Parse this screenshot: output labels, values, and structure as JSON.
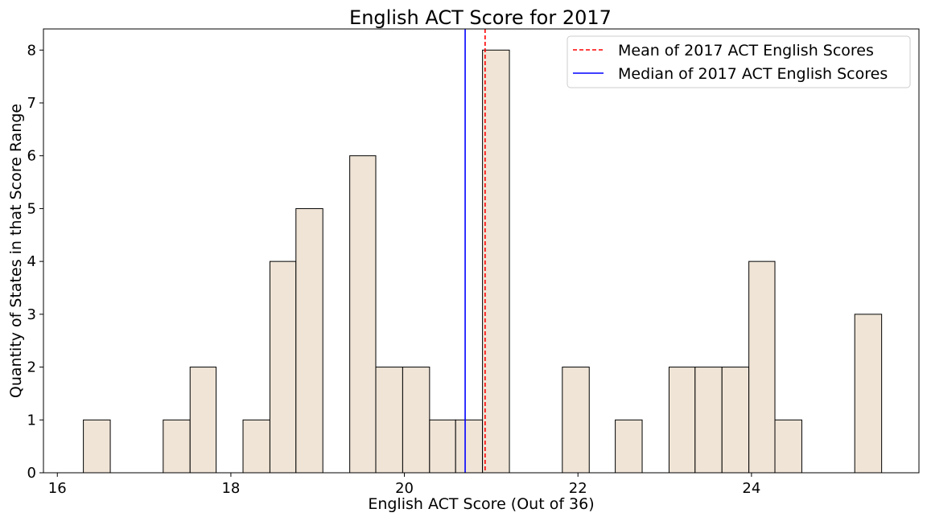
{
  "chart_data": {
    "type": "bar",
    "title": "English ACT Score for 2017",
    "xlabel": "English ACT Score (Out of 36)",
    "ylabel": "Quantity of States in that Score Range",
    "xlim": [
      15.84,
      25.93
    ],
    "ylim": [
      0,
      8.4
    ],
    "x_ticks": [
      16,
      18,
      20,
      22,
      24
    ],
    "y_ticks": [
      0,
      1,
      2,
      3,
      4,
      5,
      6,
      7,
      8
    ],
    "bar_color": "#efe4d6",
    "bar_edge_color": "#000000",
    "bins": [
      {
        "x0": 16.3,
        "x1": 16.61,
        "count": 1
      },
      {
        "x0": 17.22,
        "x1": 17.53,
        "count": 1
      },
      {
        "x0": 17.53,
        "x1": 17.83,
        "count": 2
      },
      {
        "x0": 18.14,
        "x1": 18.45,
        "count": 1
      },
      {
        "x0": 18.45,
        "x1": 18.75,
        "count": 4
      },
      {
        "x0": 18.75,
        "x1": 19.06,
        "count": 5
      },
      {
        "x0": 19.37,
        "x1": 19.67,
        "count": 6
      },
      {
        "x0": 19.67,
        "x1": 19.98,
        "count": 2
      },
      {
        "x0": 19.98,
        "x1": 20.29,
        "count": 2
      },
      {
        "x0": 20.29,
        "x1": 20.59,
        "count": 1
      },
      {
        "x0": 20.59,
        "x1": 20.9,
        "count": 1
      },
      {
        "x0": 20.9,
        "x1": 21.21,
        "count": 8
      },
      {
        "x0": 21.82,
        "x1": 22.13,
        "count": 2
      },
      {
        "x0": 22.43,
        "x1": 22.74,
        "count": 1
      },
      {
        "x0": 23.05,
        "x1": 23.35,
        "count": 2
      },
      {
        "x0": 23.35,
        "x1": 23.66,
        "count": 2
      },
      {
        "x0": 23.66,
        "x1": 23.97,
        "count": 2
      },
      {
        "x0": 23.97,
        "x1": 24.27,
        "count": 4
      },
      {
        "x0": 24.27,
        "x1": 24.58,
        "count": 1
      },
      {
        "x0": 25.19,
        "x1": 25.5,
        "count": 3
      }
    ],
    "lines": [
      {
        "name": "Mean of 2017 ACT English Scores",
        "x": 20.93,
        "color": "#ff0000",
        "style": "dashed"
      },
      {
        "name": "Median of 2017 ACT English Scores",
        "x": 20.7,
        "color": "#0000ff",
        "style": "solid"
      }
    ],
    "legend_position": "top-right",
    "grid": false
  }
}
